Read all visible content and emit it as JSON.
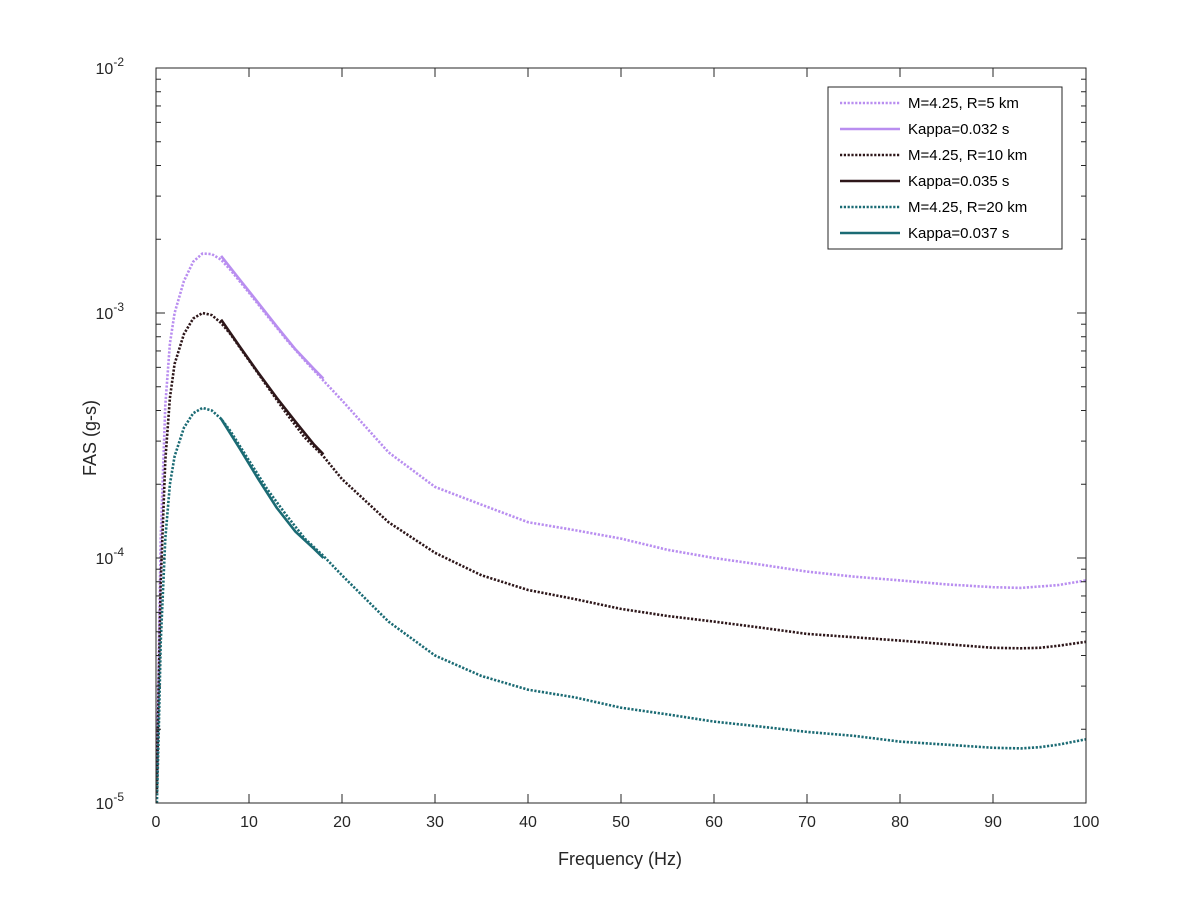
{
  "chart_data": {
    "type": "line",
    "xlabel": "Frequency (Hz)",
    "ylabel": "FAS (g-s)",
    "xlim": [
      0,
      100
    ],
    "ylim": [
      1e-05,
      0.01
    ],
    "yscale": "log",
    "xticks": [
      0,
      10,
      20,
      30,
      40,
      50,
      60,
      70,
      80,
      90,
      100
    ],
    "yticks": [
      {
        "value": 0.01,
        "base": "10",
        "exp": "-2"
      },
      {
        "value": 0.001,
        "base": "10",
        "exp": "-3"
      },
      {
        "value": 0.0001,
        "base": "10",
        "exp": "-4"
      },
      {
        "value": 1e-05,
        "base": "10",
        "exp": "-5"
      }
    ],
    "grid": false,
    "legend_position": "top-right",
    "series": [
      {
        "name": "M=4.25, R=5 km",
        "color": "#b98ef0",
        "style": "dotted",
        "x": [
          0.1,
          0.3,
          0.5,
          1,
          1.5,
          2,
          3,
          4,
          5,
          6,
          7,
          8,
          10,
          12,
          14,
          16,
          18,
          20,
          25,
          30,
          35,
          40,
          45,
          50,
          55,
          60,
          65,
          70,
          75,
          80,
          85,
          90,
          93,
          95,
          97,
          100
        ],
        "y": [
          1.3e-05,
          4e-05,
          0.00012,
          0.00042,
          0.00075,
          0.001,
          0.00135,
          0.00162,
          0.00175,
          0.00174,
          0.00165,
          0.0015,
          0.00121,
          0.00097,
          0.00078,
          0.00064,
          0.00053,
          0.00044,
          0.00027,
          0.000195,
          0.000165,
          0.00014,
          0.00013,
          0.00012,
          0.000108,
          0.0001,
          9.4e-05,
          8.8e-05,
          8.4e-05,
          8.1e-05,
          7.8e-05,
          7.6e-05,
          7.55e-05,
          7.65e-05,
          7.75e-05,
          8.1e-05
        ]
      },
      {
        "name": "Kappa=0.032 s",
        "color": "#b98ef0",
        "style": "solid",
        "x": [
          7,
          9,
          11,
          13,
          15,
          17,
          18
        ],
        "y": [
          0.00171,
          0.00137,
          0.0011,
          0.00088,
          0.00071,
          0.00059,
          0.00054
        ]
      },
      {
        "name": "M=4.25, R=10 km",
        "color": "#2e171a",
        "style": "dotted",
        "x": [
          0.1,
          0.3,
          0.5,
          1,
          1.5,
          2,
          3,
          4,
          5,
          6,
          7,
          8,
          10,
          12,
          14,
          16,
          18,
          20,
          25,
          30,
          35,
          40,
          45,
          50,
          55,
          60,
          65,
          70,
          75,
          80,
          85,
          90,
          93,
          95,
          97,
          100
        ],
        "y": [
          1.1e-05,
          3.2e-05,
          8e-05,
          0.00025,
          0.00045,
          0.00062,
          0.00082,
          0.00095,
          0.001,
          0.00098,
          0.00091,
          0.00082,
          0.00064,
          0.0005,
          0.00039,
          0.00031,
          0.00026,
          0.00021,
          0.00014,
          0.000105,
          8.5e-05,
          7.4e-05,
          6.8e-05,
          6.2e-05,
          5.8e-05,
          5.5e-05,
          5.2e-05,
          4.9e-05,
          4.75e-05,
          4.6e-05,
          4.45e-05,
          4.3e-05,
          4.28e-05,
          4.3e-05,
          4.38e-05,
          4.55e-05
        ]
      },
      {
        "name": "Kappa=0.035 s",
        "color": "#2e171a",
        "style": "solid",
        "x": [
          7,
          9,
          11,
          13,
          15,
          17,
          18
        ],
        "y": [
          0.00094,
          0.00073,
          0.00057,
          0.00045,
          0.00036,
          0.00029,
          0.000265
        ]
      },
      {
        "name": "M=4.25, R=20 km",
        "color": "#1b6b74",
        "style": "dotted",
        "x": [
          0.1,
          0.3,
          0.5,
          1,
          1.5,
          2,
          3,
          4,
          5,
          6,
          7,
          8,
          10,
          12,
          14,
          16,
          18,
          20,
          25,
          30,
          35,
          40,
          45,
          50,
          55,
          60,
          65,
          70,
          75,
          80,
          85,
          90,
          93,
          95,
          97,
          100
        ],
        "y": [
          1e-05,
          2e-05,
          4.5e-05,
          0.00012,
          0.0002,
          0.00026,
          0.00034,
          0.00039,
          0.00041,
          0.0004,
          0.00037,
          0.00033,
          0.00025,
          0.00019,
          0.00015,
          0.00012,
          0.000102,
          8.5e-05,
          5.5e-05,
          4e-05,
          3.3e-05,
          2.9e-05,
          2.7e-05,
          2.45e-05,
          2.3e-05,
          2.15e-05,
          2.05e-05,
          1.95e-05,
          1.88e-05,
          1.78e-05,
          1.73e-05,
          1.68e-05,
          1.67e-05,
          1.69e-05,
          1.73e-05,
          1.82e-05
        ]
      },
      {
        "name": "Kappa=0.037 s",
        "color": "#1b6b74",
        "style": "solid",
        "x": [
          7,
          9,
          11,
          13,
          15,
          17,
          18
        ],
        "y": [
          0.00037,
          0.00028,
          0.00021,
          0.00016,
          0.000128,
          0.000109,
          0.0001
        ]
      }
    ]
  }
}
